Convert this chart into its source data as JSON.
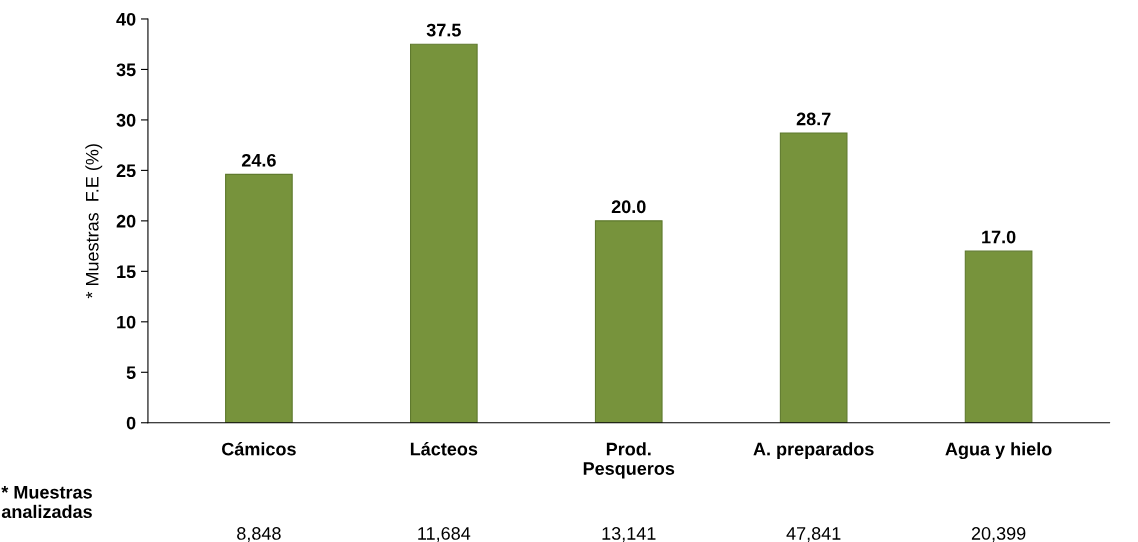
{
  "chart_data": {
    "type": "bar",
    "ylabel": "* Muestras  F.E (%)",
    "categories": [
      "Cámicos",
      "Lácteos",
      "Prod.\nPesqueros",
      "A. preparados",
      "Agua y hielo"
    ],
    "values": [
      24.6,
      37.5,
      20.0,
      28.7,
      17.0
    ],
    "value_labels": [
      "24.6",
      "37.5",
      "20.0",
      "28.7",
      "17.0"
    ],
    "color": "#77933c",
    "ylim": [
      0,
      40
    ],
    "yticks": [
      0,
      5,
      10,
      15,
      20,
      25,
      30,
      35,
      40
    ],
    "grid": false,
    "legend": false,
    "annotations": [
      "* Muestras\nanalizadas",
      "8,848",
      "11,684",
      "13,141",
      "47,841",
      "20,399"
    ]
  }
}
